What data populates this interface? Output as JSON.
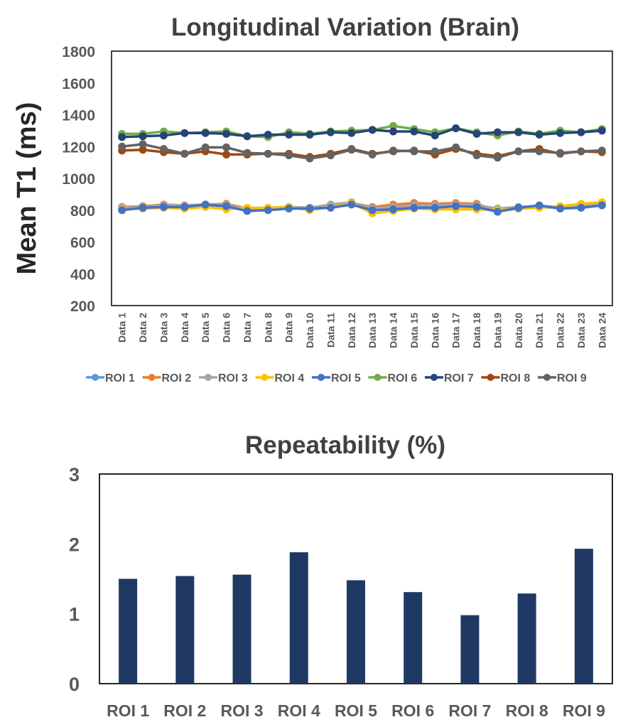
{
  "chart_data": [
    {
      "type": "line",
      "title": "Longitudinal Variation (Brain)",
      "ylabel": "Mean T1 (ms)",
      "xlabel": "",
      "ylim": [
        200,
        1800
      ],
      "yticks": [
        200,
        400,
        600,
        800,
        1000,
        1200,
        1400,
        1600,
        1800
      ],
      "grid": false,
      "legend": "bottom",
      "categories": [
        "Data 1",
        "Data 2",
        "Data 3",
        "Data 4",
        "Data 5",
        "Data 6",
        "Data 7",
        "Data 8",
        "Data 9",
        "Data 10",
        "Data 11",
        "Data 12",
        "Data 13",
        "Data 14",
        "Data 15",
        "Data 16",
        "Data 17",
        "Data 18",
        "Data 19",
        "Data 20",
        "Data 21",
        "Data 22",
        "Data 23",
        "Data 24"
      ],
      "series": [
        {
          "name": "ROI 1",
          "color": "#5B9BD5",
          "values": [
            810,
            815,
            825,
            820,
            830,
            825,
            805,
            810,
            815,
            810,
            825,
            840,
            805,
            810,
            825,
            815,
            830,
            825,
            810,
            815,
            820,
            815,
            825,
            835
          ]
        },
        {
          "name": "ROI 2",
          "color": "#ED7D31",
          "values": [
            820,
            825,
            835,
            830,
            835,
            840,
            810,
            815,
            820,
            815,
            830,
            845,
            820,
            835,
            845,
            840,
            845,
            840,
            795,
            810,
            825,
            820,
            830,
            840
          ]
        },
        {
          "name": "ROI 3",
          "color": "#A5A5A5",
          "values": [
            815,
            820,
            830,
            830,
            835,
            835,
            805,
            810,
            820,
            815,
            835,
            850,
            810,
            820,
            830,
            830,
            835,
            830,
            810,
            820,
            825,
            815,
            825,
            840
          ]
        },
        {
          "name": "ROI 4",
          "color": "#FFC000",
          "values": [
            805,
            810,
            815,
            810,
            820,
            805,
            815,
            815,
            820,
            800,
            820,
            845,
            780,
            795,
            810,
            805,
            805,
            805,
            800,
            810,
            815,
            825,
            840,
            850
          ]
        },
        {
          "name": "ROI 5",
          "color": "#4472C4",
          "values": [
            800,
            815,
            820,
            820,
            835,
            825,
            795,
            800,
            810,
            810,
            815,
            835,
            800,
            805,
            815,
            815,
            825,
            820,
            790,
            815,
            830,
            810,
            815,
            830
          ]
        },
        {
          "name": "ROI 6",
          "color": "#70AD47",
          "values": [
            1280,
            1280,
            1295,
            1285,
            1290,
            1295,
            1265,
            1260,
            1290,
            1280,
            1295,
            1300,
            1305,
            1330,
            1310,
            1290,
            1315,
            1290,
            1270,
            1295,
            1280,
            1300,
            1290,
            1310
          ]
        },
        {
          "name": "ROI 7",
          "color": "#264478",
          "values": [
            1260,
            1265,
            1270,
            1285,
            1285,
            1280,
            1265,
            1275,
            1275,
            1275,
            1290,
            1285,
            1305,
            1295,
            1295,
            1270,
            1315,
            1280,
            1290,
            1290,
            1275,
            1285,
            1290,
            1300
          ]
        },
        {
          "name": "ROI 8",
          "color": "#9E480E",
          "values": [
            1175,
            1180,
            1165,
            1155,
            1170,
            1150,
            1150,
            1155,
            1155,
            1135,
            1155,
            1185,
            1155,
            1170,
            1175,
            1150,
            1185,
            1155,
            1140,
            1170,
            1185,
            1155,
            1170,
            1165
          ]
        },
        {
          "name": "ROI 9",
          "color": "#636363",
          "values": [
            1200,
            1215,
            1185,
            1155,
            1195,
            1195,
            1160,
            1155,
            1145,
            1125,
            1145,
            1180,
            1150,
            1175,
            1170,
            1170,
            1195,
            1145,
            1130,
            1170,
            1170,
            1160,
            1170,
            1175
          ]
        }
      ]
    },
    {
      "type": "bar",
      "title": "Repeatability (%)",
      "xlabel": "",
      "ylabel": "",
      "ylim": [
        0,
        3
      ],
      "yticks": [
        0,
        1,
        2,
        3
      ],
      "grid": false,
      "color": "#203864",
      "categories": [
        "ROI 1",
        "ROI 2",
        "ROI 3",
        "ROI 4",
        "ROI 5",
        "ROI 6",
        "ROI 7",
        "ROI 8",
        "ROI 9"
      ],
      "values": [
        1.5,
        1.54,
        1.56,
        1.88,
        1.48,
        1.31,
        0.98,
        1.29,
        1.93
      ]
    }
  ]
}
